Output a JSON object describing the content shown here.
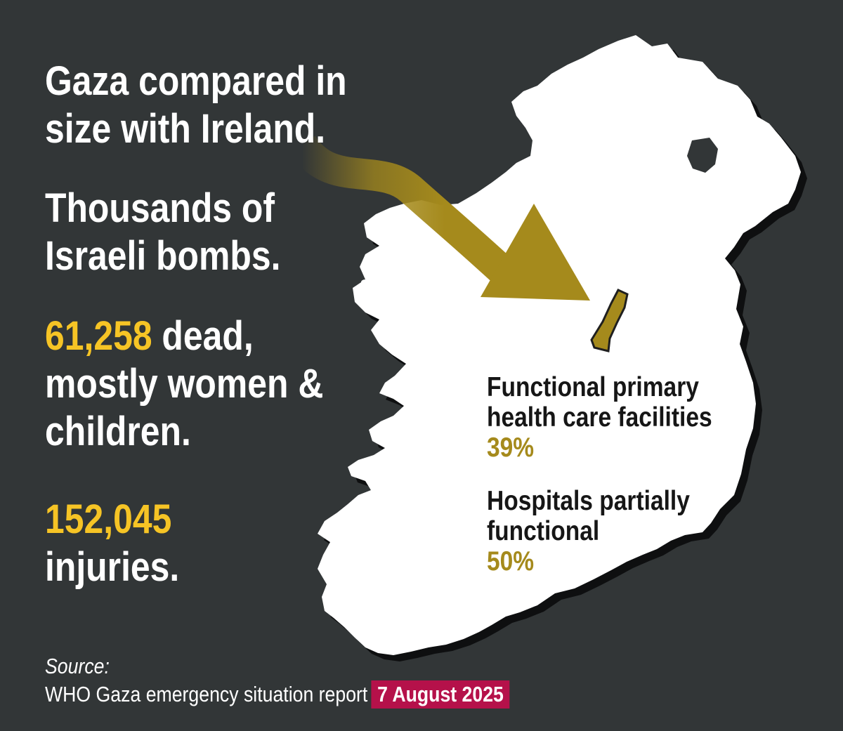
{
  "headlines": {
    "line1a": "Gaza compared in",
    "line1b": "size with Ireland.",
    "line2a": "Thousands of",
    "line2b": "Israeli bombs.",
    "dead_number": "61,258",
    "dead_rest": " dead,",
    "dead_line2": "mostly women &",
    "dead_line3": "children.",
    "injuries_number": "152,045",
    "injuries_label": "injuries."
  },
  "stats": [
    {
      "label_line1": "Functional primary",
      "label_line2": "health care facilities",
      "value": "39%"
    },
    {
      "label_line1": "Hospitals partially",
      "label_line2": "functional",
      "value": "50%"
    }
  ],
  "source": {
    "label": "Source:",
    "text": "WHO Gaza emergency situation report",
    "date": "7 August 2025"
  },
  "map": {
    "regions": [
      "Ireland",
      "Gaza Strip"
    ],
    "icons": [
      "ireland-map-icon",
      "gaza-strip-icon",
      "arrow-icon"
    ]
  },
  "colors": {
    "background": "#323637",
    "text": "#ffffff",
    "highlight_yellow": "#f6c425",
    "gold": "#a58a1c",
    "date_badge": "#b5114a",
    "dark_text": "#161616"
  }
}
